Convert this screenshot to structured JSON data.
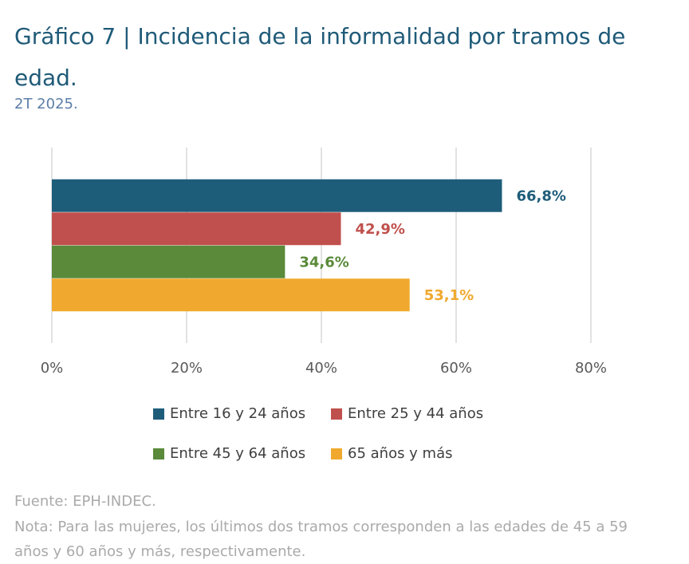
{
  "chart_data": {
    "type": "bar",
    "orientation": "horizontal",
    "title": "Gráfico 7 | Incidencia de la informalidad por tramos de edad.",
    "subtitle": "2T 2025.",
    "categories": [
      null
    ],
    "series": [
      {
        "name": "Entre 16 y 24 años",
        "color": "#1e5d7a",
        "values": [
          66.8
        ],
        "value_labels": [
          "66,8%"
        ]
      },
      {
        "name": "Entre 25 y 44 años",
        "color": "#c0504d",
        "values": [
          42.9
        ],
        "value_labels": [
          "42,9%"
        ]
      },
      {
        "name": "Entre 45 y 64 años",
        "color": "#5a8a3a",
        "values": [
          34.6
        ],
        "value_labels": [
          "34,6%"
        ]
      },
      {
        "name": "65 años y más",
        "color": "#f0a92e",
        "values": [
          53.1
        ],
        "value_labels": [
          "53,1%"
        ]
      }
    ],
    "xlim": [
      0,
      80
    ],
    "xticks": [
      {
        "value": 0,
        "label": "0%"
      },
      {
        "value": 20,
        "label": "20%"
      },
      {
        "value": 40,
        "label": "40%"
      },
      {
        "value": 60,
        "label": "60%"
      },
      {
        "value": 80,
        "label": "80%"
      }
    ],
    "grid": true,
    "legend": "bottom",
    "source": "Fuente: EPH-INDEC.",
    "note": "Nota: Para las mujeres, los últimos dos tramos corresponden a las edades de 45 a 59 años y 60 años y más, respectivamente."
  }
}
